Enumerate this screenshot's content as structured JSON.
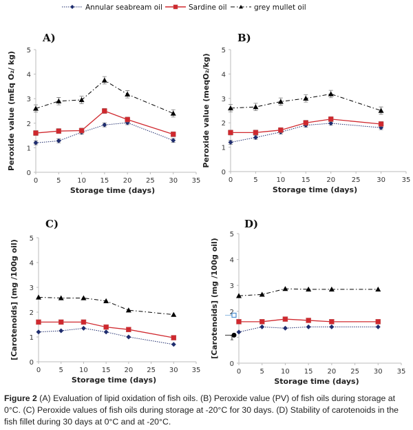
{
  "legend": [
    {
      "name": "Annular seabream oil",
      "color": "#1f2d6e",
      "marker": "diamond",
      "line": "dotted"
    },
    {
      "name": "Sardine oil",
      "color": "#d0282e",
      "marker": "square",
      "line": "solid"
    },
    {
      "name": "grey mullet oil",
      "color": "#000000",
      "marker": "triangle",
      "line": "dashdot"
    }
  ],
  "chart_data": [
    {
      "type": "line",
      "panel": "A)",
      "xlabel": "Storage time (days)",
      "ylabel": "Peroxide value (mEq O₂/ kg)",
      "xlim": [
        0,
        35
      ],
      "ylim": [
        0,
        5
      ],
      "xticks": [
        0,
        5,
        10,
        15,
        20,
        25,
        30,
        35
      ],
      "yticks": [
        0,
        1,
        2,
        3,
        4,
        5
      ],
      "error_bars": true,
      "x": [
        0,
        5,
        10,
        15,
        20,
        30
      ],
      "series": [
        {
          "name": "Annular seabream oil",
          "values": [
            1.2,
            1.28,
            1.63,
            1.93,
            2.02,
            1.3
          ],
          "error": 0.08
        },
        {
          "name": "Sardine oil",
          "values": [
            1.6,
            1.68,
            1.7,
            2.5,
            2.15,
            1.55
          ],
          "error": 0.1
        },
        {
          "name": "grey mullet oil",
          "values": [
            2.6,
            2.9,
            2.95,
            3.75,
            3.18,
            2.4
          ],
          "error": 0.15
        }
      ]
    },
    {
      "type": "line",
      "panel": "B)",
      "xlabel": "Storage time (days)",
      "ylabel": "Peroxide value (meqO₂/kg)",
      "xlim": [
        0,
        35
      ],
      "ylim": [
        0,
        5
      ],
      "xticks": [
        0,
        5,
        10,
        15,
        20,
        25,
        30,
        35
      ],
      "yticks": [
        0,
        1,
        2,
        3,
        4,
        5
      ],
      "error_bars": true,
      "x": [
        0,
        5,
        10,
        15,
        20,
        30
      ],
      "series": [
        {
          "name": "Annular seabream oil",
          "values": [
            1.2,
            1.4,
            1.62,
            1.9,
            1.98,
            1.8
          ],
          "error": 0.08
        },
        {
          "name": "Sardine oil",
          "values": [
            1.6,
            1.6,
            1.7,
            2.0,
            2.15,
            1.95
          ],
          "error": 0.1
        },
        {
          "name": "grey mullet oil",
          "values": [
            2.6,
            2.65,
            2.87,
            3.0,
            3.18,
            2.5
          ],
          "error": 0.15
        }
      ]
    },
    {
      "type": "line",
      "panel": "C)",
      "xlabel": "Storage time (days)",
      "ylabel": "[Carotenoids] (mg /100g oil)",
      "xlim": [
        0,
        35
      ],
      "ylim": [
        0,
        5
      ],
      "xticks": [
        0,
        5,
        10,
        15,
        20,
        25,
        30,
        35
      ],
      "yticks": [
        0,
        1,
        2,
        3,
        4,
        5
      ],
      "error_bars": false,
      "x": [
        0,
        5,
        10,
        15,
        20,
        30
      ],
      "series": [
        {
          "name": "Annular seabream oil",
          "values": [
            1.2,
            1.25,
            1.35,
            1.2,
            1.0,
            0.7
          ]
        },
        {
          "name": "Sardine oil",
          "values": [
            1.6,
            1.6,
            1.6,
            1.4,
            1.3,
            0.97
          ]
        },
        {
          "name": "grey mullet oil",
          "values": [
            2.6,
            2.57,
            2.57,
            2.45,
            2.08,
            1.9
          ]
        }
      ]
    },
    {
      "type": "line",
      "panel": "D)",
      "xlabel": "Storage time (days)",
      "ylabel": "[Carotenoids] (mg /100g oil)",
      "xlim": [
        0,
        35
      ],
      "ylim": [
        0,
        5
      ],
      "xticks": [
        0,
        5,
        10,
        15,
        20,
        25,
        30,
        35
      ],
      "yticks": [
        0,
        1,
        2,
        3,
        4,
        5
      ],
      "error_bars": false,
      "x": [
        0,
        5,
        10,
        15,
        20,
        30
      ],
      "series": [
        {
          "name": "Annular seabream oil",
          "values": [
            1.2,
            1.4,
            1.35,
            1.4,
            1.4,
            1.4
          ]
        },
        {
          "name": "Sardine oil",
          "values": [
            1.6,
            1.6,
            1.7,
            1.65,
            1.6,
            1.6
          ]
        },
        {
          "name": "grey mullet oil",
          "values": [
            2.6,
            2.65,
            2.87,
            2.85,
            2.85,
            2.85
          ]
        }
      ]
    }
  ],
  "caption": {
    "label": "Figure 2",
    "text": " (A) Evaluation of lipid oxidation of fish oils. (B) Peroxide value (PV) of fish oils during storage at 0°C. (C) Peroxide values of fish oils during storage at -20°C for 30 days. (D) Stability of carotenoids in the fish fillet during 30 days at 0°C and at -20°C."
  }
}
